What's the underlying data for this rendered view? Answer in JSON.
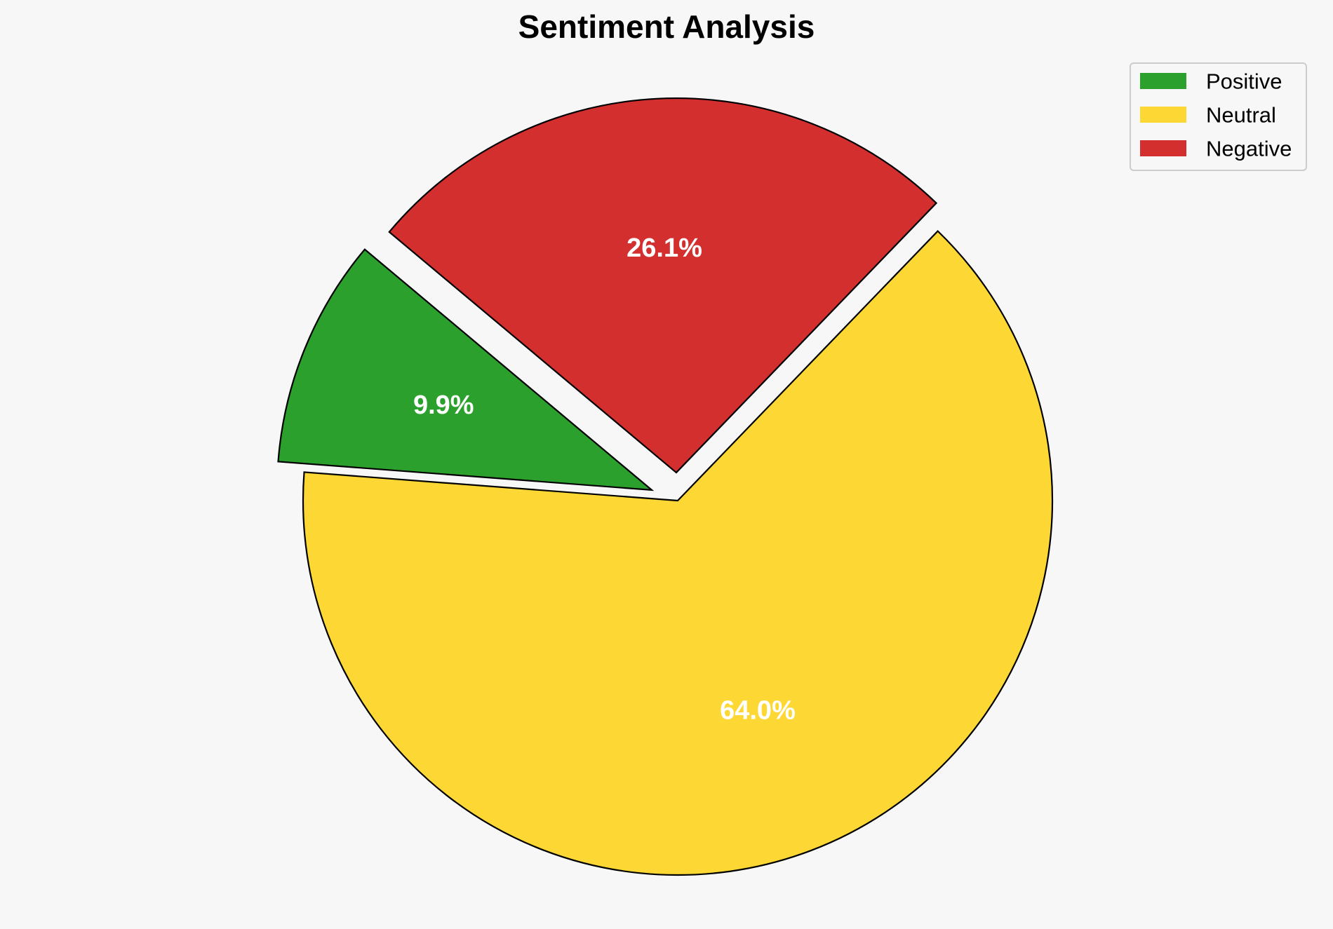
{
  "chart_data": {
    "type": "pie",
    "title": "Sentiment Analysis",
    "categories": [
      "Positive",
      "Neutral",
      "Negative"
    ],
    "values": [
      9.9,
      64.0,
      26.1
    ],
    "value_labels": [
      "9.9%",
      "64.0%",
      "26.1%"
    ],
    "colors": [
      "#2ca02c",
      "#fdd835",
      "#d32f2f"
    ],
    "exploded": [
      true,
      false,
      true
    ],
    "legend_position": "top-right"
  }
}
